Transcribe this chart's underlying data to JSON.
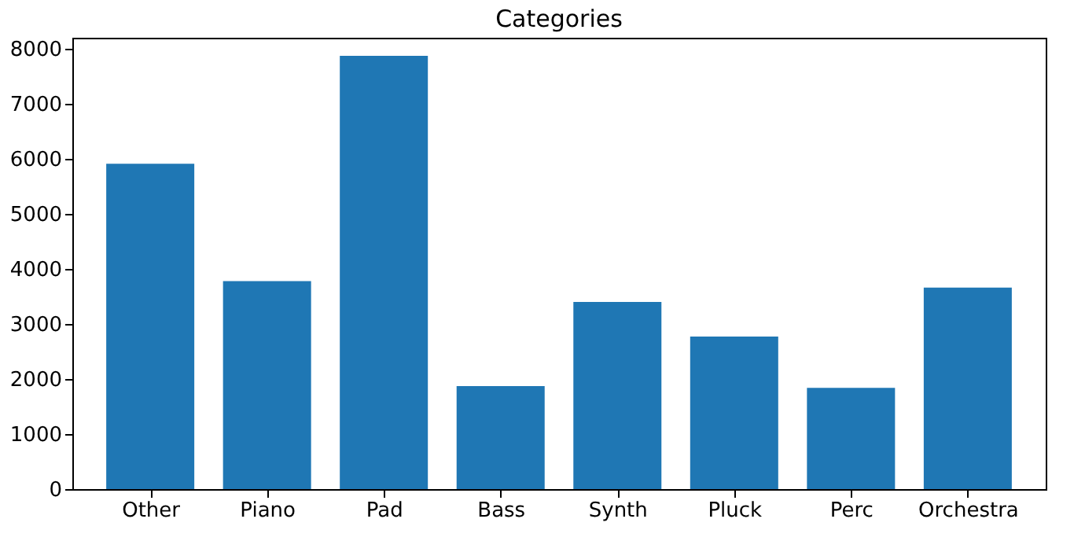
{
  "chart_data": {
    "type": "bar",
    "title": "Categories",
    "categories": [
      "Other",
      "Piano",
      "Pad",
      "Bass",
      "Synth",
      "Pluck",
      "Perc",
      "Orchestra"
    ],
    "values": [
      5910,
      3780,
      7870,
      1870,
      3400,
      2770,
      1840,
      3660
    ],
    "color": "#1f77b4",
    "ylim": [
      0,
      8200
    ],
    "yticks": [
      0,
      1000,
      2000,
      3000,
      4000,
      5000,
      6000,
      7000,
      8000
    ],
    "grid": false
  }
}
